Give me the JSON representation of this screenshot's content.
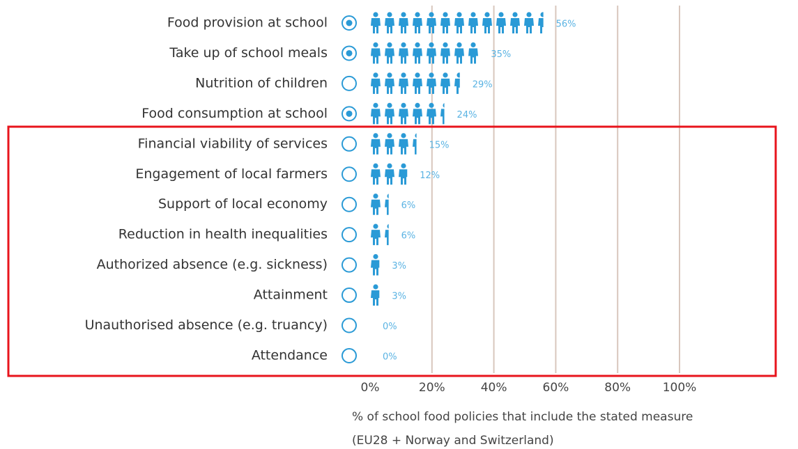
{
  "chart_data": {
    "type": "pictogram_bar",
    "categories": [
      "Food provision at school",
      "Take up of school meals",
      "Nutrition of children",
      "Food consumption at school",
      "Financial viability of services",
      "Engagement of local farmers",
      "Support of local economy",
      "Reduction in health inequalities",
      "Authorized absence (e.g. sickness)",
      "Attainment",
      "Unauthorised absence (e.g. truancy)",
      "Attendance"
    ],
    "values": [
      56,
      35,
      29,
      24,
      15,
      12,
      6,
      6,
      3,
      3,
      0,
      0
    ],
    "value_labels": [
      "56%",
      "35%",
      "29%",
      "24%",
      "15%",
      "12%",
      "6%",
      "6%",
      "3%",
      "3%",
      "0%",
      "0%"
    ],
    "selected": [
      true,
      true,
      false,
      true,
      false,
      false,
      false,
      false,
      false,
      false,
      false,
      false
    ],
    "color": "#2a9ad6",
    "xlim": [
      0,
      100
    ],
    "xticks": [
      {
        "value": 0,
        "label": "0%"
      },
      {
        "value": 20,
        "label": "20%"
      },
      {
        "value": 40,
        "label": "40%"
      },
      {
        "value": 60,
        "label": "60%"
      },
      {
        "value": 80,
        "label": "80%"
      },
      {
        "value": 100,
        "label": "100%"
      }
    ],
    "grid": true,
    "x_label": "% of school food policies that include the stated measure",
    "x_label_note": "(EU28 + Norway and Switzerland)"
  }
}
